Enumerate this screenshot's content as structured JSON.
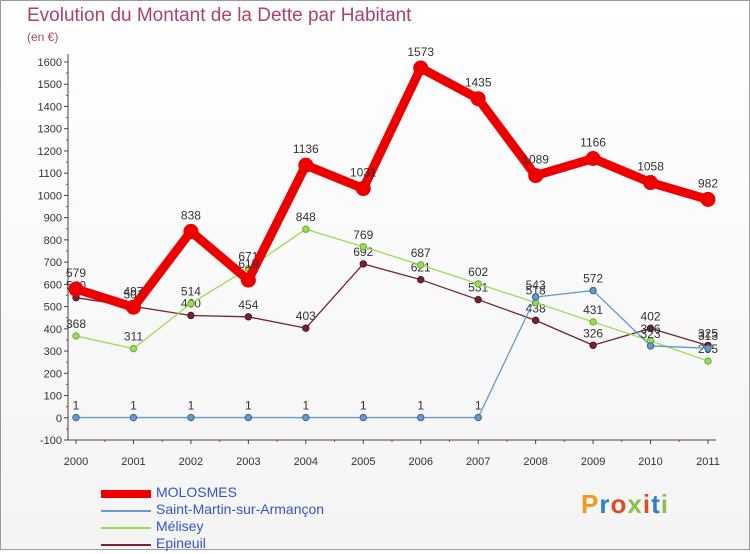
{
  "header": {
    "title": "Evolution du Montant de la Dette par Habitant",
    "subtitle": "(en €)"
  },
  "logo": {
    "text": "Proxiti"
  },
  "chart_data": {
    "type": "line",
    "title": "Evolution du Montant de la Dette par Habitant",
    "ylabel": "(en €)",
    "xlabel": "",
    "x": [
      "2000",
      "2001",
      "2002",
      "2003",
      "2004",
      "2005",
      "2006",
      "2007",
      "2008",
      "2009",
      "2010",
      "2011"
    ],
    "ylim": [
      -100,
      1600
    ],
    "yticks": [
      "-100",
      "0",
      "100",
      "200",
      "300",
      "400",
      "500",
      "600",
      "700",
      "800",
      "900",
      "1000",
      "1100",
      "1200",
      "1300",
      "1400",
      "1500",
      "1600"
    ],
    "grid": false,
    "legend": "bottom-left",
    "series": [
      {
        "name": "MOLOSMES",
        "color": "#ee0000",
        "values": [
          579,
          497,
          838,
          619,
          1136,
          1031,
          1573,
          1435,
          1089,
          1166,
          1058,
          982
        ],
        "labels": [
          "579",
          "497",
          "838",
          "619",
          "1136",
          "1031",
          "1573",
          "1435",
          "1089",
          "1166",
          "1058",
          "982"
        ]
      },
      {
        "name": "Saint-Martin-sur-Armançon",
        "color": "#6699cc",
        "values": [
          1,
          1,
          1,
          1,
          1,
          1,
          1,
          1,
          543,
          572,
          323,
          313
        ],
        "labels": [
          "1",
          "1",
          "1",
          "1",
          "1",
          "1",
          "1",
          "1",
          "543",
          "572",
          "323",
          "313"
        ]
      },
      {
        "name": "Mélisey",
        "color": "#99dd55",
        "values": [
          368,
          311,
          514,
          671,
          848,
          769,
          687,
          602,
          518,
          431,
          346,
          255
        ],
        "labels": [
          "368",
          "311",
          "514",
          "671",
          "848",
          "769",
          "687",
          "602",
          "518",
          "431",
          "346",
          "255"
        ]
      },
      {
        "name": "Epineuil",
        "color": "#772233",
        "values": [
          540,
          501,
          460,
          454,
          403,
          692,
          621,
          531,
          438,
          326,
          402,
          325
        ],
        "labels": [
          "540",
          "501",
          "460",
          "454",
          "403",
          "692",
          "621",
          "531",
          "438",
          "326",
          "402",
          "325"
        ]
      }
    ]
  }
}
